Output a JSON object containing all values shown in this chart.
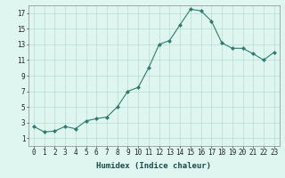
{
  "x": [
    0,
    1,
    2,
    3,
    4,
    5,
    6,
    7,
    8,
    9,
    10,
    11,
    12,
    13,
    14,
    15,
    16,
    17,
    18,
    19,
    20,
    21,
    22,
    23
  ],
  "y": [
    2.5,
    1.8,
    1.9,
    2.5,
    2.2,
    3.2,
    3.5,
    3.7,
    5.0,
    7.0,
    7.5,
    10.0,
    13.0,
    13.5,
    15.5,
    17.5,
    17.3,
    16.0,
    13.2,
    12.5,
    12.5,
    11.8,
    11.0,
    12.0
  ],
  "line_color": "#2e7c6e",
  "marker": "D",
  "marker_size": 2.0,
  "bg_color": "#dff5f0",
  "grid_color": "#b8ddd6",
  "xlabel": "Humidex (Indice chaleur)",
  "ylim": [
    0,
    18
  ],
  "xlim": [
    -0.5,
    23.5
  ],
  "yticks": [
    1,
    3,
    5,
    7,
    9,
    11,
    13,
    15,
    17
  ],
  "xticks": [
    0,
    1,
    2,
    3,
    4,
    5,
    6,
    7,
    8,
    9,
    10,
    11,
    12,
    13,
    14,
    15,
    16,
    17,
    18,
    19,
    20,
    21,
    22,
    23
  ],
  "xlabel_fontsize": 6.5,
  "tick_fontsize": 5.5
}
